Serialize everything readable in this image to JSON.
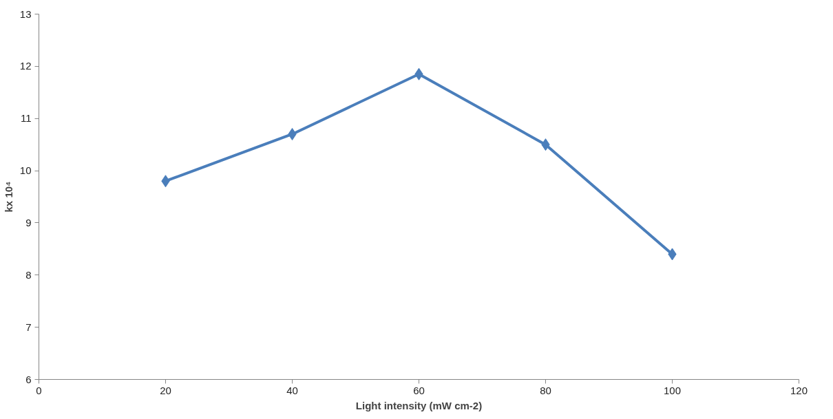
{
  "chart_data": {
    "type": "line",
    "xlabel": "Light intensity (mW cm-2)",
    "ylabel": "kx 10⁴",
    "x": [
      20,
      40,
      60,
      80,
      100
    ],
    "series": [
      {
        "color": "#4a7ebb",
        "values": [
          9.8,
          10.7,
          11.85,
          10.5,
          8.4
        ]
      }
    ],
    "xlim": [
      0,
      120
    ],
    "xticks": [
      0,
      20,
      40,
      60,
      80,
      100,
      120
    ],
    "ylim": [
      6,
      13
    ],
    "yticks": [
      6,
      7,
      8,
      9,
      10,
      11,
      12,
      13
    ],
    "grid": false,
    "marker": "diamond",
    "line_style": "solid"
  }
}
